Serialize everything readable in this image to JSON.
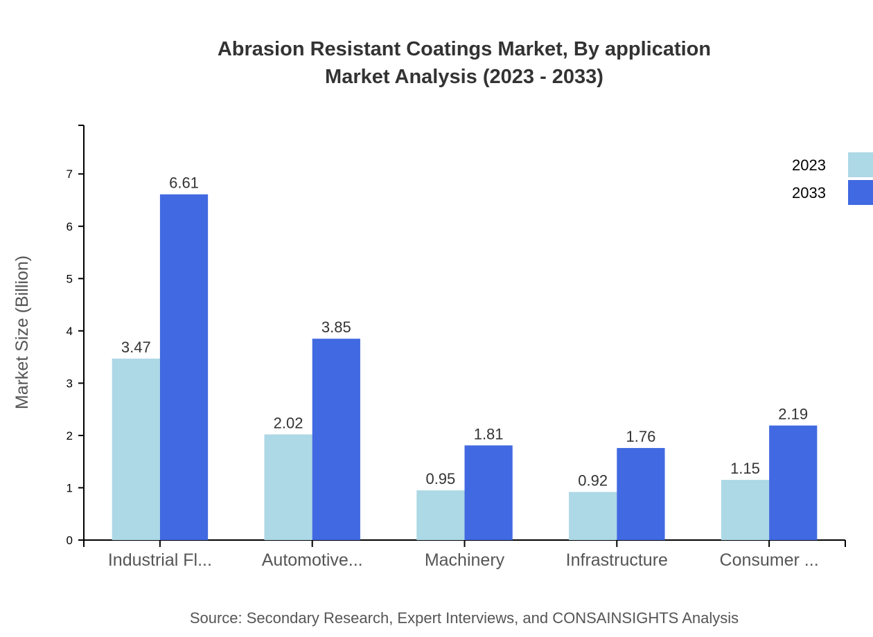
{
  "chart_data": {
    "type": "bar",
    "title": "Abrasion Resistant Coatings Market, By application",
    "subtitle": "Market Analysis (2023 - 2033)",
    "xlabel": "",
    "ylabel": "Market Size (Billion)",
    "ylim": [
      0,
      7.93
    ],
    "yticks": [
      0,
      1,
      2,
      3,
      4,
      5,
      6,
      7
    ],
    "categories": [
      "Industrial Fl...",
      "Automotive...",
      "Machinery",
      "Infrastructure",
      "Consumer ..."
    ],
    "series": [
      {
        "name": "2023",
        "color": "#add8e6",
        "values": [
          3.47,
          2.02,
          0.95,
          0.92,
          1.15
        ]
      },
      {
        "name": "2033",
        "color": "#4169e1",
        "values": [
          6.61,
          3.85,
          1.81,
          1.76,
          2.19
        ]
      }
    ],
    "legend_position": "top-right",
    "grid": false,
    "source": "Source: Secondary Research, Expert Interviews, and CONSAINSIGHTS Analysis"
  }
}
